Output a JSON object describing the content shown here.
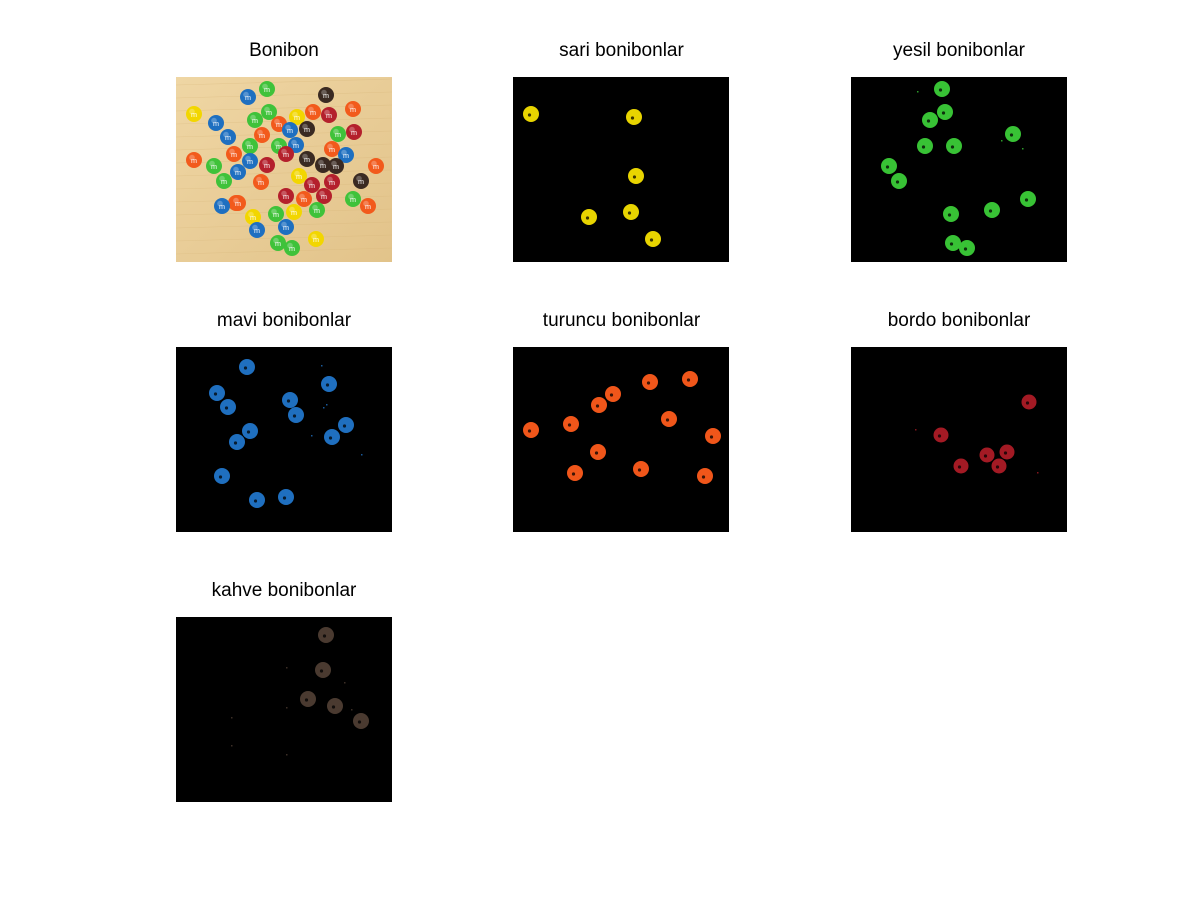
{
  "figure": {
    "panels": [
      {
        "id": "original",
        "title": "Bonibon",
        "kind": "photo"
      },
      {
        "id": "yellow",
        "title": "sari bonibonlar",
        "kind": "mask",
        "color": "#e8d400"
      },
      {
        "id": "green",
        "title": "yesil bonibonlar",
        "kind": "mask",
        "color": "#38c235"
      },
      {
        "id": "blue",
        "title": "mavi bonibonlar",
        "kind": "mask",
        "color": "#1f6fbf"
      },
      {
        "id": "orange",
        "title": "turuncu bonibonlar",
        "kind": "mask",
        "color": "#f0561a"
      },
      {
        "id": "red",
        "title": "bordo bonibonlar",
        "kind": "mask",
        "color": "#a31a24"
      },
      {
        "id": "brown",
        "title": "kahve bonibonlar",
        "kind": "mask",
        "color": "#4a3a30"
      }
    ],
    "colors": {
      "background": "#ffffff",
      "mask_background": "#000000",
      "table": "#e9cd98"
    }
  }
}
